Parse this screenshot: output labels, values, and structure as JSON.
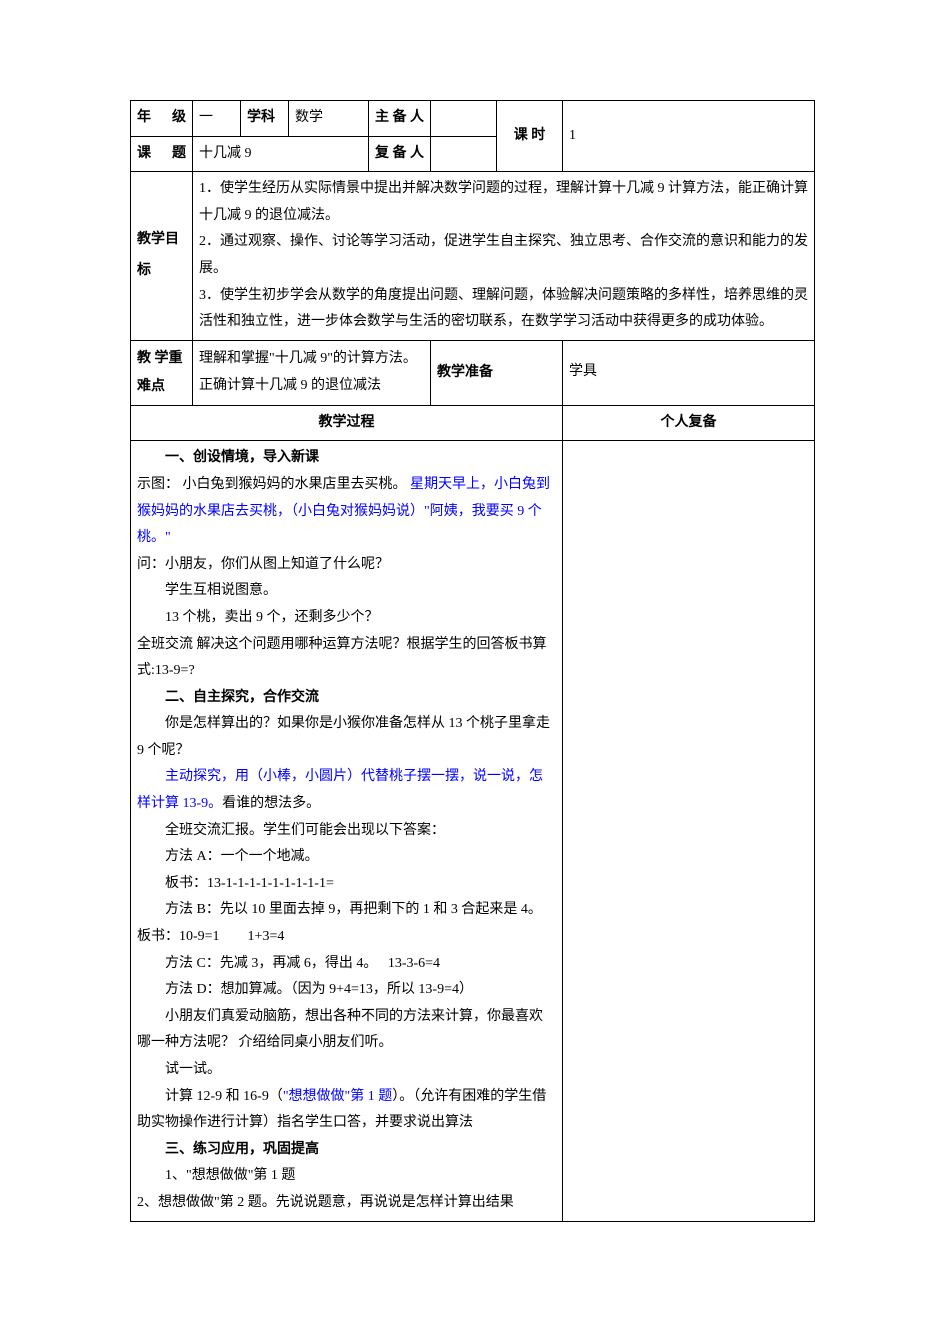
{
  "header": {
    "grade_label": "年 级",
    "grade_value": "一",
    "subject_label": "学科",
    "subject_value": "数学",
    "preparer_label": "主备人",
    "preparer_value": "",
    "period_label": "课 时",
    "period_value": "1",
    "topic_label": "课 题",
    "topic_value": "十几减 9",
    "copreparer_label": "复备人",
    "copreparer_value": ""
  },
  "goals": {
    "label": "教学目标",
    "text": "1．使学生经历从实际情景中提出并解决数学问题的过程，理解计算十几减 9 计算方法，能正确计算十几减 9 的退位减法。\n2．通过观察、操作、讨论等学习活动，促进学生自主探究、独立思考、合作交流的意识和能力的发展。\n3．使学生初步学会从数学的角度提出问题、理解问题，体验解决问题策略的多样性，培养思维的灵活性和独立性，进一步体会数学与生活的密切联系，在数学学习活动中获得更多的成功体验。"
  },
  "keypoints": {
    "label": "教 学重难点",
    "text": "理解和掌握\"十几减 9\"的计算方法。正确计算十几减 9 的退位减法",
    "prep_label": "教学准备",
    "prep_value": "学具"
  },
  "process": {
    "header": "教学过程",
    "notes_header": "个人复备",
    "body": [
      {
        "cls": "indent1 bold",
        "segs": [
          {
            "t": "一、创设情境，导入新课"
          }
        ]
      },
      {
        "cls": "indent0",
        "segs": [
          {
            "t": "  示图：  小白兔到猴妈妈的水果店里去买桃。 "
          },
          {
            "t": "星期天早上，小白兔到猴妈妈的水果店去买桃，（小白兔对猴妈妈说）\"阿姨，我要买 9 个桃。\"",
            "c": "blue"
          }
        ]
      },
      {
        "cls": "indent0",
        "segs": [
          {
            "t": "问：小朋友，你们从图上知道了什么呢？"
          }
        ]
      },
      {
        "cls": "indent0",
        "segs": [
          {
            "t": "　　学生互相说图意。"
          }
        ]
      },
      {
        "cls": "indent0",
        "segs": [
          {
            "t": "　　13 个桃，卖出 9 个，还剩多少个？"
          }
        ]
      },
      {
        "cls": "indent0",
        "segs": [
          {
            "t": "全班交流  解决这个问题用哪种运算方法呢？根据学生的回答板书算式:13-9=?"
          }
        ]
      },
      {
        "cls": "indent1 bold",
        "segs": [
          {
            "t": "二、自主探究，合作交流"
          }
        ]
      },
      {
        "cls": "indent1",
        "segs": [
          {
            "t": "你是怎样算出的？如果你是小猴你准备怎样从 13 个桃子里拿走"
          }
        ]
      },
      {
        "cls": "indent0",
        "segs": [
          {
            "t": "9 个呢？"
          }
        ]
      },
      {
        "cls": "indent1",
        "segs": [
          {
            "t": "主动探究，用（小棒，小圆片）代替桃子摆一摆，说一说，怎样计算 13-9。",
            "c": "blue"
          },
          {
            "t": "看谁的想法多。"
          }
        ]
      },
      {
        "cls": "indent1",
        "segs": [
          {
            "t": "全班交流汇报。学生们可能会出现以下答案："
          }
        ]
      },
      {
        "cls": "indent1",
        "segs": [
          {
            "t": "方法 A：一个一个地减。"
          }
        ]
      },
      {
        "cls": "indent1",
        "segs": [
          {
            "t": "板书：13-1-1-1-1-1-1-1-1-1="
          }
        ]
      },
      {
        "cls": "indent1",
        "segs": [
          {
            "t": "方法 B：先以 10 里面去掉 9，再把剩下的 1 和 3 合起来是 4。"
          }
        ]
      },
      {
        "cls": "indent0",
        "segs": [
          {
            "t": "板书：10-9=1　　1+3=4"
          }
        ]
      },
      {
        "cls": "indent1",
        "segs": [
          {
            "t": "方法 C：先减 3，再减 6，得出 4。　 13-3-6=4"
          }
        ]
      },
      {
        "cls": "indent1",
        "segs": [
          {
            "t": "方法 D：想加算减。（因为 9+4=13，所以 13-9=4）"
          }
        ]
      },
      {
        "cls": "indent1",
        "segs": [
          {
            "t": "小朋友们真爱动脑筋，想出各种不同的方法来计算，你最喜欢哪一种方法呢？  介绍给同桌小朋友们听。"
          }
        ]
      },
      {
        "cls": "indent1",
        "segs": [
          {
            "t": "试一试。"
          }
        ]
      },
      {
        "cls": "indent1",
        "segs": [
          {
            "t": "计算 12-9 和 16-9（"
          },
          {
            "t": "\"想想做做\"第 1 题",
            "c": "blue"
          },
          {
            "t": "）。（允许有困难的学生借助实物操作进行计算）指名学生口答，并要求说出算法"
          }
        ]
      },
      {
        "cls": "indent1 bold",
        "segs": [
          {
            "t": "三、练习应用，巩固提高"
          }
        ]
      },
      {
        "cls": "indent1",
        "segs": [
          {
            "t": "1、\"想想做做\"第 1 题"
          }
        ]
      },
      {
        "cls": "indent0",
        "segs": [
          {
            "t": "  2、想想做做\"第 2 题。先说说题意，再说说是怎样计算出结果"
          }
        ]
      }
    ]
  },
  "style": {
    "text_color": "#000000",
    "blue_color": "#0000ff",
    "border_color": "#000000",
    "background": "#ffffff",
    "font_size_pt": 11
  }
}
